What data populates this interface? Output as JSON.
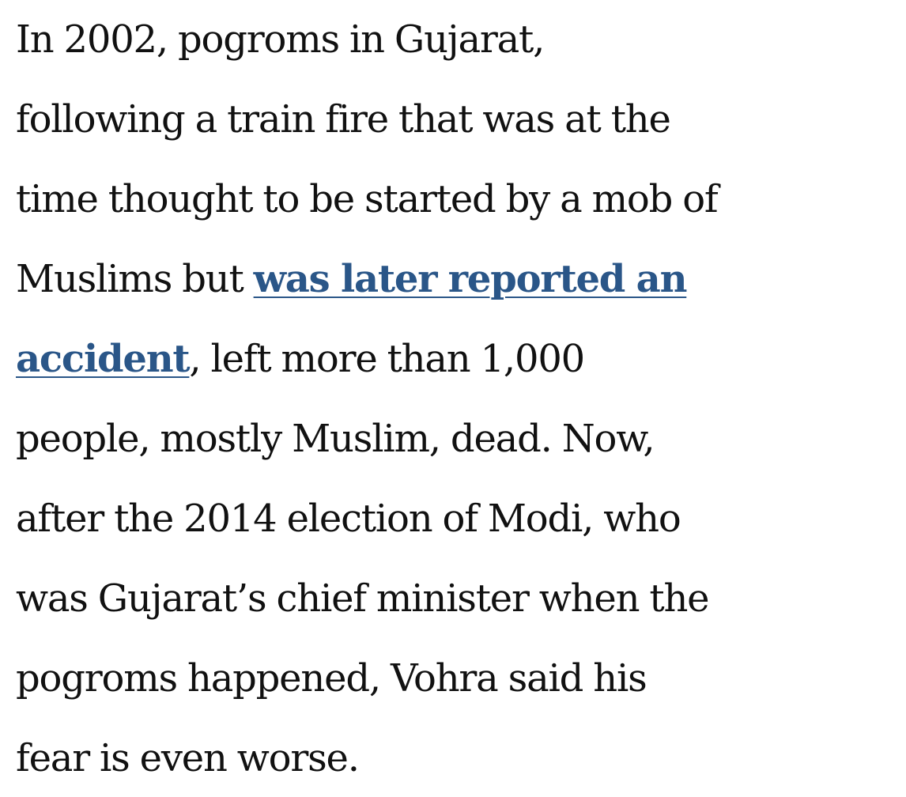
{
  "article": {
    "lines": {
      "l1": "In 2002, pogroms in Gujarat,",
      "l2": "following a train fire that was at the",
      "l3": "time thought to be started by a mob of",
      "l4_before_link": "Muslims but ",
      "l4_link": "was later reported an",
      "l5_link": "accident",
      "l5_after_link": ", left more than 1,000",
      "l6": "people, mostly Muslim, dead. Now,",
      "l7": "after the 2014 election of Modi, who",
      "l8": "was Gujarat’s chief minister when the",
      "l9": "pogroms happened, Vohra said his",
      "l10": "fear is even worse."
    },
    "link_color": "#2a5688",
    "text_color": "#111111"
  }
}
